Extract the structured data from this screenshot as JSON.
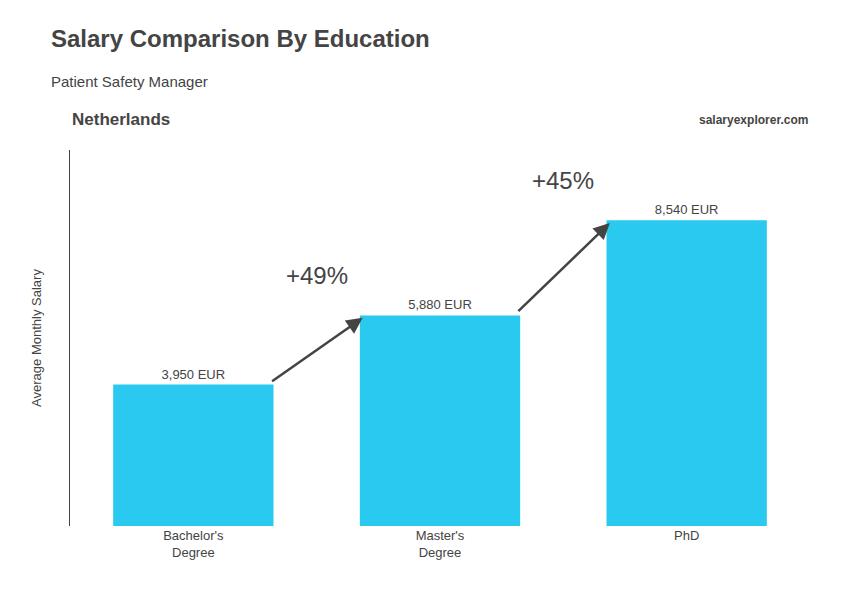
{
  "chart_data": {
    "type": "bar",
    "title": "Salary Comparison By Education",
    "subtitle": "Patient Safety Manager",
    "ylabel": "Average Monthly Salary",
    "categories": [
      "Bachelor's\nDegree",
      "Master's\nDegree",
      "PhD"
    ],
    "values": [
      3950,
      5880,
      8540
    ],
    "value_labels": [
      "3,950 EUR",
      "5,880 EUR",
      "8,540 EUR"
    ],
    "data_labels": true,
    "color": "#29C9F0",
    "ylim": [
      0,
      10500
    ],
    "tick_labels": "x",
    "grid": false,
    "annotations": [
      {
        "text": "Netherlands"
      },
      {
        "text": "salaryexplorer.com"
      },
      {
        "text": "+49%",
        "from": "Bachelor's\nDegree",
        "to": "Master's\nDegree"
      },
      {
        "text": "+45%",
        "from": "Master's\nDegree",
        "to": "PhD"
      }
    ]
  }
}
